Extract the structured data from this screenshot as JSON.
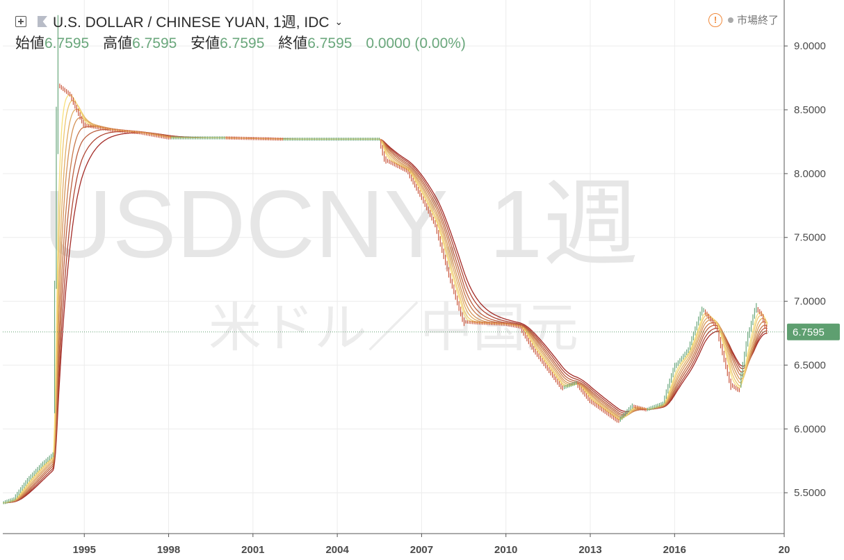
{
  "header": {
    "title": "U.S. DOLLAR / CHINESE YUAN, 1週, IDC",
    "status": "市場終了"
  },
  "ohlc": {
    "open_label": "始値",
    "open": "6.7595",
    "high_label": "高値",
    "high": "6.7595",
    "low_label": "安値",
    "low": "6.7595",
    "close_label": "終値",
    "close": "6.7595",
    "change": "0.0000 (0.00%)"
  },
  "watermark": {
    "symbol": "USDCNY, 1週",
    "description": "米ドル／中国元"
  },
  "colors": {
    "up": "#6aa77c",
    "down": "#c9553b",
    "ribbon_start": "#a32a26",
    "ribbon_end": "#f8e07a",
    "last_price_tag": "#5e9f70"
  },
  "chart_data": {
    "type": "line",
    "title": "",
    "xlabel": "",
    "ylabel": "",
    "x_ticks": [
      "1995",
      "1998",
      "2001",
      "2004",
      "2007",
      "2010",
      "2013",
      "2016",
      "20"
    ],
    "y_ticks": [
      "9.0000",
      "8.5000",
      "8.0000",
      "7.5000",
      "7.0000",
      "6.5000",
      "6.0000",
      "5.5000"
    ],
    "ylim": [
      5.18,
      9.36
    ],
    "xlim": [
      1992.1,
      2019.9
    ],
    "last_price": "6.7595",
    "grid": true,
    "series": [
      {
        "values": [
          [
            1992.1,
            5.42
          ],
          [
            1992.5,
            5.45
          ],
          [
            1993.0,
            5.6
          ],
          [
            1993.5,
            5.72
          ],
          [
            1993.9,
            5.8
          ],
          [
            1994.05,
            8.7
          ],
          [
            1994.5,
            8.62
          ],
          [
            1995.0,
            8.38
          ],
          [
            1996.0,
            8.34
          ],
          [
            1997.0,
            8.32
          ],
          [
            1998.0,
            8.28
          ],
          [
            2000.0,
            8.28
          ],
          [
            2002.0,
            8.27
          ],
          [
            2004.0,
            8.27
          ],
          [
            2005.5,
            8.27
          ],
          [
            2005.7,
            8.11
          ],
          [
            2006.5,
            8.02
          ],
          [
            2007.0,
            7.82
          ],
          [
            2007.5,
            7.6
          ],
          [
            2008.0,
            7.2
          ],
          [
            2008.5,
            6.84
          ],
          [
            2009.0,
            6.83
          ],
          [
            2010.0,
            6.82
          ],
          [
            2010.5,
            6.8
          ],
          [
            2011.0,
            6.62
          ],
          [
            2011.5,
            6.47
          ],
          [
            2012.0,
            6.32
          ],
          [
            2012.5,
            6.36
          ],
          [
            2013.0,
            6.22
          ],
          [
            2014.0,
            6.06
          ],
          [
            2014.5,
            6.18
          ],
          [
            2015.0,
            6.15
          ],
          [
            2015.6,
            6.2
          ],
          [
            2016.0,
            6.48
          ],
          [
            2016.5,
            6.62
          ],
          [
            2017.0,
            6.94
          ],
          [
            2017.5,
            6.8
          ],
          [
            2018.0,
            6.35
          ],
          [
            2018.3,
            6.3
          ],
          [
            2018.6,
            6.7
          ],
          [
            2018.9,
            6.95
          ],
          [
            2019.1,
            6.9
          ],
          [
            2019.3,
            6.76
          ]
        ]
      }
    ]
  }
}
